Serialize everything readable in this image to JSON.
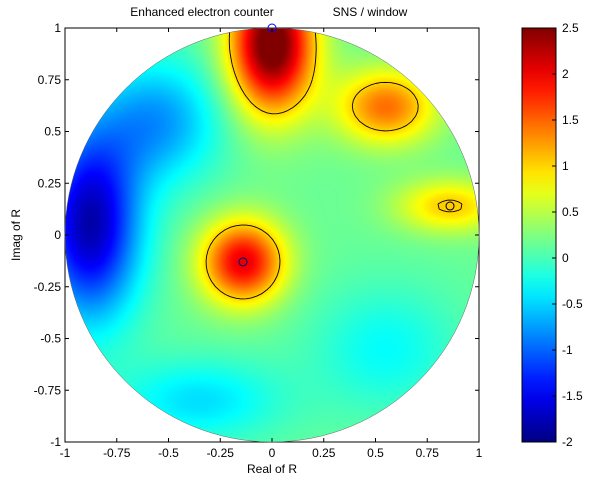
{
  "chart_data": {
    "type": "heatmap",
    "title": "Enhanced electron counter",
    "subtitle": "SNS / window",
    "xlabel": "Real of R",
    "ylabel": "Imag of R",
    "xlim": [
      -1,
      1
    ],
    "ylim": [
      -1,
      1
    ],
    "x_ticks": [
      "-1",
      "-0.75",
      "-0.5",
      "-0.25",
      "0",
      "0.25",
      "0.5",
      "0.75",
      "1"
    ],
    "y_ticks": [
      "1",
      "0.75",
      "0.5",
      "0.25",
      "0",
      "-0.25",
      "-0.5",
      "-0.75",
      "-1"
    ],
    "x_tick_values": [
      -1,
      -0.75,
      -0.5,
      -0.25,
      0,
      0.25,
      0.5,
      0.75,
      1
    ],
    "y_tick_values": [
      1,
      0.75,
      0.5,
      0.25,
      0,
      -0.25,
      -0.5,
      -0.75,
      -1
    ],
    "colorbar": {
      "range": [
        -2,
        2.5
      ],
      "colormap": "jet",
      "ticks": [
        "2.5",
        "2",
        "1.5",
        "1",
        "0.5",
        "0",
        "-0.5",
        "-1",
        "-1.5",
        "-2"
      ],
      "tick_values": [
        2.5,
        2,
        1.5,
        1,
        0.5,
        0,
        -0.5,
        -1,
        -1.5,
        -2
      ]
    },
    "field_sources": [
      {
        "x": 0.0,
        "y": 0.92,
        "value": 2.6,
        "sx": 0.2,
        "sy": 0.32
      },
      {
        "x": -0.14,
        "y": -0.13,
        "value": 1.9,
        "sx": 0.2,
        "sy": 0.2
      },
      {
        "x": 0.86,
        "y": 0.14,
        "value": 0.9,
        "sx": 0.26,
        "sy": 0.13
      },
      {
        "x": 0.55,
        "y": 0.62,
        "value": 1.3,
        "sx": 0.24,
        "sy": 0.18
      },
      {
        "x": -0.88,
        "y": 0.05,
        "value": -1.95,
        "sx": 0.24,
        "sy": 0.45
      },
      {
        "x": -0.55,
        "y": 0.55,
        "value": -0.9,
        "sx": 0.3,
        "sy": 0.3
      },
      {
        "x": -0.35,
        "y": -0.8,
        "value": -0.6,
        "sx": 0.4,
        "sy": 0.2
      },
      {
        "x": 0.55,
        "y": -0.55,
        "value": -0.45,
        "sx": 0.35,
        "sy": 0.3
      }
    ],
    "markers": [
      {
        "x": 0.0,
        "y": 1.0,
        "color": "#0000ff"
      },
      {
        "x": -0.14,
        "y": -0.13,
        "color": "#000080"
      },
      {
        "x": 0.86,
        "y": 0.14,
        "color": "#000000"
      }
    ],
    "contour_level": 1.0,
    "domain": "unit-disk",
    "grid": false,
    "legend": "colorbar-right"
  }
}
